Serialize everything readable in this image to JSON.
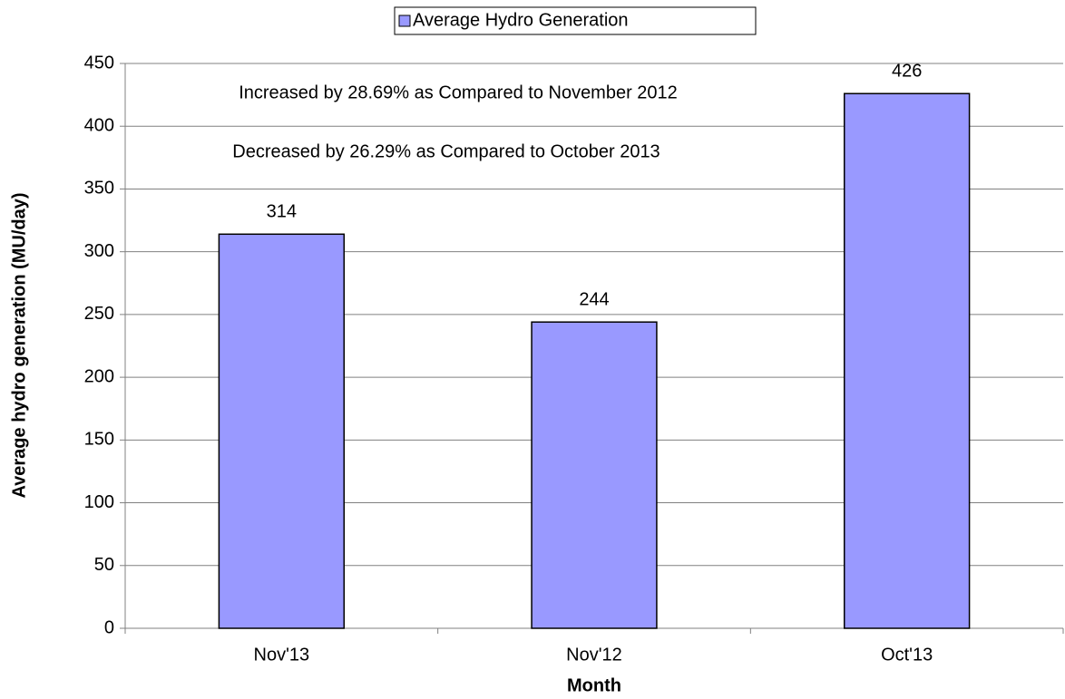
{
  "chart_data": {
    "type": "bar",
    "categories": [
      "Nov'13",
      "Nov'12",
      "Oct'13"
    ],
    "series": [
      {
        "name": "Average Hydro Generation",
        "color": "#9999ff",
        "values": [
          314,
          244,
          426
        ]
      }
    ],
    "annotations": [
      "Increased by 28.69% as Compared to November 2012",
      "Decreased by 26.29% as Compared to October 2013"
    ],
    "x_label": "Month",
    "y_label": "Average hydro generation (MU/day)",
    "ylim": [
      0,
      450
    ],
    "yticks": [
      0,
      50,
      100,
      150,
      200,
      250,
      300,
      350,
      400,
      450
    ],
    "grid": true,
    "legend": "top"
  }
}
